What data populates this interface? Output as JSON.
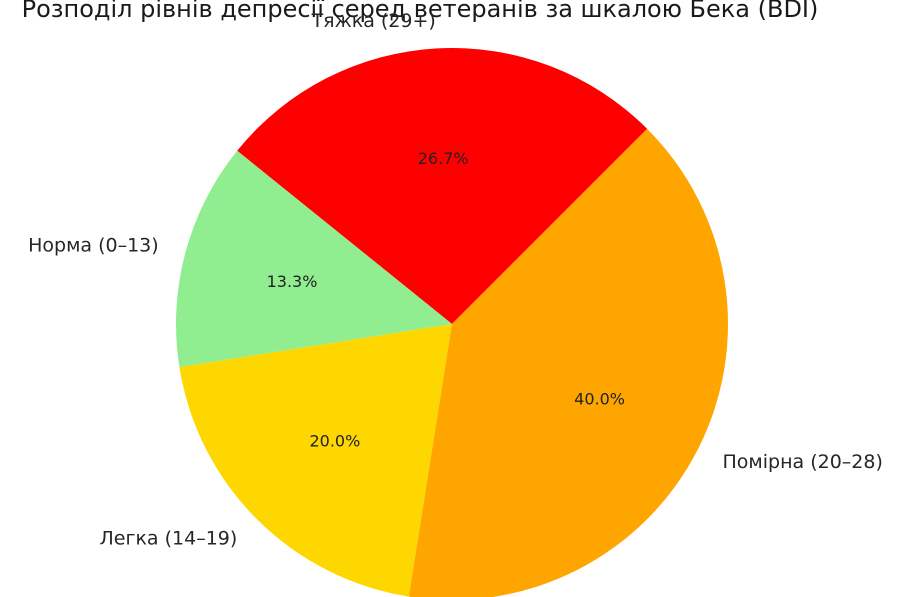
{
  "chart_data": {
    "type": "pie",
    "title": "Розподіл рівнів депресії серед ветеранів за шкалою Бека (BDI)",
    "start_angle_deg": 45,
    "direction": "counterclockwise",
    "slices": [
      {
        "label": "Тяжка (29+)",
        "value": 26.7,
        "pct_label": "26.7%",
        "color": "#ff0000"
      },
      {
        "label": "Норма (0–13)",
        "value": 13.3,
        "pct_label": "13.3%",
        "color": "#90ee90"
      },
      {
        "label": "Легка (14–19)",
        "value": 20.0,
        "pct_label": "20.0%",
        "color": "#ffd700"
      },
      {
        "label": "Помірна (20–28)",
        "value": 40.0,
        "pct_label": "40.0%",
        "color": "#ffa500"
      }
    ]
  }
}
